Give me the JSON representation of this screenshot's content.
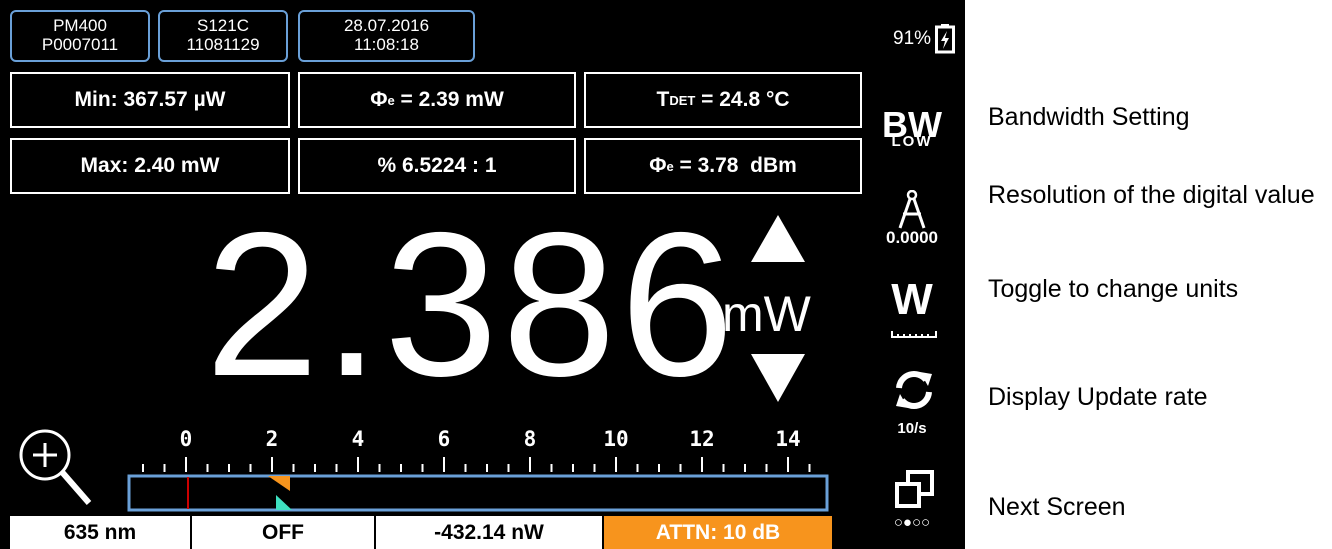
{
  "header": {
    "tabs": [
      {
        "line1": "PM400",
        "line2": "P0007011"
      },
      {
        "line1": "S121C",
        "line2": "11081129"
      },
      {
        "line1": "28.07.2016",
        "line2": "11:08:18"
      }
    ],
    "battery": "91%"
  },
  "stats": [
    [
      {
        "text": "Min: 367.57 µW"
      },
      {
        "symbol": "Φ",
        "sub": "e",
        "text": " = 2.39 mW"
      },
      {
        "symbol": "T",
        "sub": "DET",
        "text": " = 24.8 °C"
      }
    ],
    [
      {
        "text": "Max: 2.40 mW"
      },
      {
        "text": "% 6.5224 : 1"
      },
      {
        "symbol": "Φ",
        "sub": "e",
        "text": " = 3.78  dBm"
      }
    ]
  ],
  "reading": {
    "value": "2.386",
    "unit": "mW"
  },
  "scale": {
    "labels": [
      "0",
      "2",
      "4",
      "6",
      "8",
      "10",
      "12",
      "14"
    ]
  },
  "sidebar": {
    "bandwidth": "BW",
    "bandwidth_setting": "LOW",
    "resolution": "0.0000",
    "units": "W",
    "rate": "10/s",
    "page": "○●○○"
  },
  "footer": [
    "635 nm",
    "OFF",
    "-432.14 nW",
    "ATTN: 10 dB"
  ],
  "annotations": [
    "Bandwidth Setting",
    "Resolution of the digital value",
    "Toggle to change units",
    "Display Update rate",
    "Next Screen"
  ]
}
